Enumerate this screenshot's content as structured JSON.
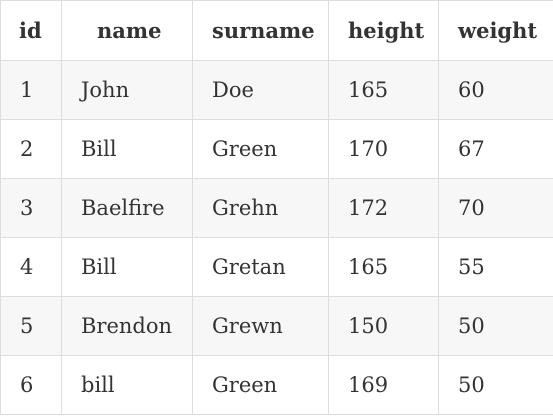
{
  "table": {
    "headers": [
      "id",
      "name",
      "surname",
      "height",
      "weight"
    ],
    "rows": [
      [
        "1",
        "John",
        "Doe",
        "165",
        "60"
      ],
      [
        "2",
        "Bill",
        "Green",
        "170",
        "67"
      ],
      [
        "3",
        "Baelfire",
        "Grehn",
        "172",
        "70"
      ],
      [
        "4",
        "Bill",
        "Gretan",
        "165",
        "55"
      ],
      [
        "5",
        "Brendon",
        "Grewn",
        "150",
        "50"
      ],
      [
        "6",
        "bill",
        "Green",
        "169",
        "50"
      ]
    ]
  }
}
